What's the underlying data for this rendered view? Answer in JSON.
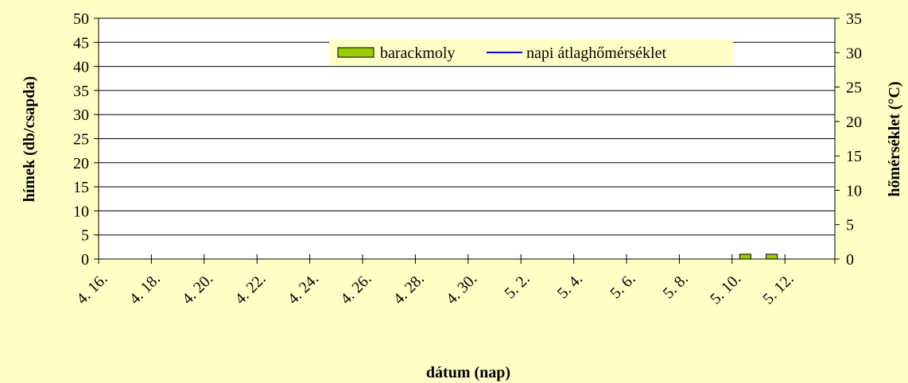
{
  "chart_data": {
    "type": "bar",
    "title": "",
    "xlabel": "dátum (nap)",
    "ylabel": "hímek (db/csapda)",
    "y2label": "hőmérséklet (°C)",
    "ylim": [
      0,
      50
    ],
    "y2lim": [
      0,
      35
    ],
    "yticks": [
      "0",
      "5",
      "10",
      "15",
      "20",
      "25",
      "30",
      "35",
      "40",
      "45",
      "50"
    ],
    "y2ticks": [
      "0",
      "5",
      "10",
      "15",
      "20",
      "25",
      "30",
      "35"
    ],
    "grid": true,
    "legend_position": "top-right",
    "categories": [
      "4. 16.",
      "4. 18.",
      "4. 20.",
      "4. 22.",
      "4. 24.",
      "4. 26.",
      "4. 28.",
      "4. 30.",
      "5. 2.",
      "5. 4.",
      "5. 6.",
      "5. 8.",
      "5. 10.",
      "5. 12."
    ],
    "series": [
      {
        "name": "barackmoly",
        "kind": "bar",
        "axis": "left",
        "color": "#99cc00",
        "points": [
          {
            "x": "5. 10.",
            "y": 1
          },
          {
            "x": "5. 11.",
            "y": 1
          }
        ]
      },
      {
        "name": "napi átlaghőmérséklet",
        "kind": "line",
        "axis": "right",
        "color": "#0000ff",
        "points": []
      }
    ]
  }
}
